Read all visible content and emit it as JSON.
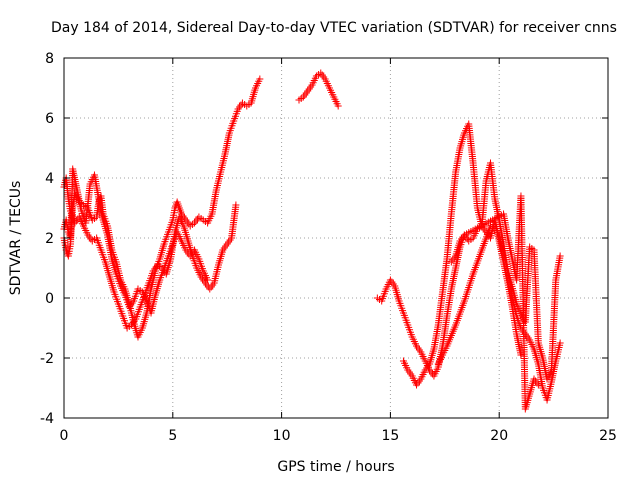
{
  "chart_data": {
    "type": "scatter",
    "title": "Day 184 of 2014, Sidereal Day-to-day VTEC variation (SDTVAR) for receiver cnns",
    "xlabel": "GPS time / hours",
    "ylabel": "SDTVAR / TECUs",
    "xlim": [
      0,
      25
    ],
    "ylim": [
      -4,
      8
    ],
    "xticks": [
      0,
      5,
      10,
      15,
      20,
      25
    ],
    "yticks": [
      -4,
      -2,
      0,
      2,
      4,
      6,
      8
    ],
    "grid": true,
    "legend": "none",
    "marker": "+",
    "color": "#ff0000",
    "series": [
      {
        "x": [
          0.0,
          0.1,
          0.2,
          0.3,
          0.4,
          0.5,
          0.7,
          0.9,
          1.1,
          1.3,
          1.5,
          1.6,
          1.7,
          1.8,
          2.0,
          2.2,
          2.4,
          2.6,
          2.8,
          3.0,
          3.2,
          3.4,
          3.6,
          3.8,
          4.0,
          4.2,
          4.4,
          4.6,
          4.8,
          5.0,
          5.1,
          5.2,
          5.3,
          5.4,
          5.6,
          5.8,
          6.0,
          6.2,
          6.4,
          6.6,
          6.8,
          7.0,
          7.2,
          7.4,
          7.6,
          7.8,
          8.0,
          8.2,
          8.4,
          8.6,
          8.8,
          9.0
        ],
        "y": [
          2.3,
          2.6,
          2.2,
          2.0,
          3.0,
          3.5,
          3.2,
          3.1,
          3.0,
          2.6,
          2.7,
          3.2,
          3.4,
          2.8,
          2.4,
          1.6,
          1.2,
          0.6,
          0.3,
          -0.2,
          -0.8,
          -1.3,
          -1.0,
          -0.5,
          0.3,
          0.9,
          1.3,
          1.8,
          2.2,
          2.6,
          3.0,
          3.2,
          3.0,
          2.8,
          2.6,
          2.4,
          2.5,
          2.7,
          2.6,
          2.5,
          2.8,
          3.6,
          4.2,
          4.8,
          5.5,
          5.9,
          6.3,
          6.5,
          6.4,
          6.5,
          7.0,
          7.3
        ]
      },
      {
        "x": [
          0.0,
          0.1,
          0.2,
          0.3,
          0.5,
          0.7,
          0.9,
          1.1,
          1.3,
          1.5,
          1.7,
          1.9,
          2.1,
          2.3,
          2.5,
          2.7,
          2.9,
          3.1,
          3.3,
          3.5,
          3.7,
          3.9,
          4.1,
          4.3,
          4.5,
          4.7,
          4.9,
          5.1,
          5.3,
          5.5,
          5.7,
          5.9,
          6.1,
          6.3,
          6.5,
          6.7,
          6.9,
          7.1,
          7.3,
          7.5,
          7.7,
          7.9
        ],
        "y": [
          3.7,
          4.0,
          3.3,
          2.9,
          2.5,
          2.7,
          2.4,
          2.1,
          1.9,
          2.0,
          1.6,
          1.2,
          0.7,
          0.2,
          -0.2,
          -0.6,
          -1.0,
          -0.9,
          -0.7,
          -0.3,
          0.1,
          0.5,
          0.9,
          1.1,
          1.0,
          0.8,
          1.3,
          2.2,
          2.7,
          2.4,
          1.9,
          1.4,
          1.0,
          0.7,
          0.5,
          0.3,
          0.5,
          1.1,
          1.6,
          1.8,
          2.0,
          3.1
        ]
      },
      {
        "x": [
          0.0,
          0.1,
          0.2,
          0.3,
          0.4,
          0.6,
          0.8,
          1.0,
          1.2,
          1.4,
          1.6,
          1.8,
          2.0,
          2.2,
          2.4,
          2.6,
          2.8,
          3.0,
          3.2,
          3.4,
          3.6,
          3.8,
          4.0,
          4.2,
          4.4,
          4.6,
          4.8,
          5.0,
          5.2,
          5.4,
          5.6,
          5.8,
          6.0,
          6.2,
          6.4,
          6.6
        ],
        "y": [
          2.0,
          1.6,
          1.4,
          1.8,
          4.3,
          3.6,
          2.9,
          2.5,
          3.8,
          4.1,
          3.3,
          2.6,
          2.1,
          1.3,
          0.8,
          0.4,
          0.1,
          -0.3,
          -0.1,
          0.3,
          0.2,
          -0.1,
          -0.5,
          0.1,
          0.6,
          1.0,
          1.4,
          1.8,
          2.2,
          1.9,
          1.6,
          1.4,
          1.6,
          1.3,
          0.9,
          0.6
        ]
      },
      {
        "x": [
          10.8,
          11.0,
          11.2,
          11.4,
          11.6,
          11.8,
          12.0,
          12.2,
          12.4,
          12.6
        ],
        "y": [
          6.6,
          6.7,
          6.9,
          7.1,
          7.4,
          7.5,
          7.3,
          7.0,
          6.7,
          6.4
        ]
      },
      {
        "x": [
          14.4,
          14.6,
          14.8,
          15.0,
          15.2,
          15.4,
          15.6,
          15.8,
          16.0,
          16.2,
          16.4,
          16.6,
          16.8,
          17.0,
          17.2,
          17.4,
          17.6,
          17.8,
          18.0,
          18.2,
          18.4,
          18.6,
          18.8,
          19.0,
          19.2,
          19.4,
          19.6,
          19.8,
          20.0,
          20.2,
          20.4,
          20.6,
          20.8,
          21.0
        ],
        "y": [
          0.0,
          -0.1,
          0.3,
          0.6,
          0.4,
          -0.1,
          -0.5,
          -0.9,
          -1.3,
          -1.6,
          -1.8,
          -2.1,
          -2.4,
          -2.6,
          -2.3,
          -1.6,
          -0.6,
          0.3,
          1.0,
          1.7,
          2.1,
          1.9,
          2.0,
          2.3,
          2.4,
          2.2,
          2.0,
          2.6,
          1.9,
          1.2,
          0.5,
          -0.3,
          -1.2,
          -1.9
        ]
      },
      {
        "x": [
          15.6,
          15.8,
          16.0,
          16.2,
          16.4,
          16.6,
          16.8,
          17.0,
          17.2,
          17.4,
          17.6,
          17.8,
          18.0,
          18.2,
          18.4,
          18.6,
          18.8,
          19.0,
          19.2,
          19.4,
          19.6,
          19.8,
          20.0,
          20.2,
          20.4,
          20.6,
          20.8,
          21.0,
          21.2,
          21.4,
          21.6,
          21.8,
          22.0,
          22.2,
          22.4,
          22.6,
          22.8
        ],
        "y": [
          -2.1,
          -2.4,
          -2.6,
          -2.9,
          -2.7,
          -2.4,
          -2.2,
          -1.7,
          -0.9,
          0.2,
          1.3,
          2.8,
          4.2,
          5.0,
          5.5,
          5.8,
          4.5,
          3.0,
          2.4,
          3.9,
          4.5,
          3.3,
          2.6,
          1.8,
          0.9,
          0.0,
          -0.6,
          -1.0,
          -1.2,
          -1.4,
          -1.7,
          -2.2,
          -3.0,
          -3.4,
          -2.8,
          -2.1,
          -1.5
        ]
      },
      {
        "x": [
          17.2,
          17.6,
          18.0,
          18.4,
          18.8,
          19.2,
          19.6,
          20.0,
          20.4,
          20.8,
          21.2,
          21.4,
          21.6,
          21.8,
          22.0,
          22.2,
          22.4,
          22.6,
          22.8
        ],
        "y": [
          -2.2,
          -1.6,
          -0.9,
          -0.1,
          0.8,
          1.6,
          2.4,
          2.1,
          0.9,
          -0.2,
          -0.8,
          1.7,
          1.6,
          -1.5,
          -2.0,
          -2.7,
          -2.4,
          0.6,
          1.4
        ]
      },
      {
        "x": [
          17.8,
          18.0,
          18.2,
          18.4,
          20.2,
          20.4,
          20.6,
          20.8,
          21.0,
          21.2,
          21.4,
          21.6,
          21.8
        ],
        "y": [
          1.2,
          1.4,
          1.9,
          2.1,
          2.8,
          2.0,
          1.3,
          0.6,
          3.4,
          -3.7,
          -3.2,
          -2.7,
          -2.9
        ]
      }
    ]
  }
}
